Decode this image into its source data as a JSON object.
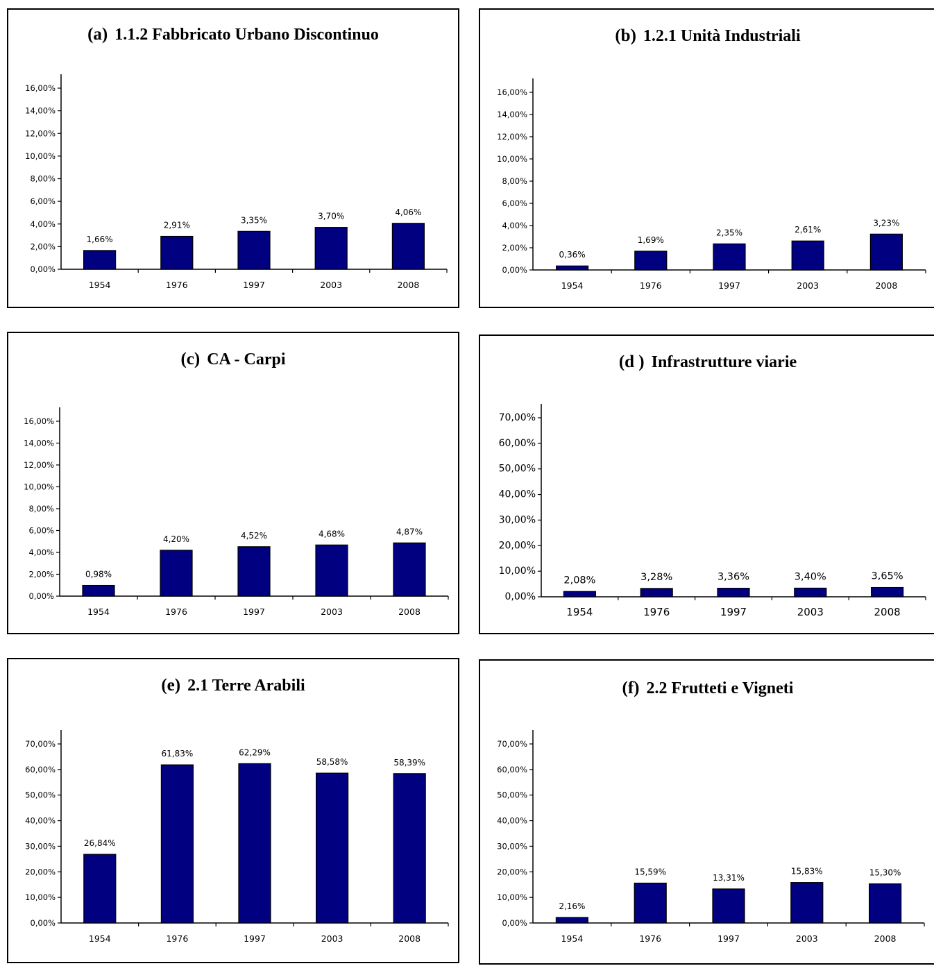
{
  "chart_data": [
    {
      "type": "bar",
      "panel_label": "(a)",
      "title": "1.1.2 Fabbricato Urbano Discontinuo",
      "categories": [
        "1954",
        "1976",
        "1997",
        "2003",
        "2008"
      ],
      "values": [
        1.66,
        2.91,
        3.35,
        3.7,
        4.06
      ],
      "value_labels": [
        "1,66%",
        "2,91%",
        "3,35%",
        "3,70%",
        "4,06%"
      ],
      "ylim": [
        0,
        16
      ],
      "yticks": [
        "0,00%",
        "2,00%",
        "4,00%",
        "6,00%",
        "8,00%",
        "10,00%",
        "12,00%",
        "14,00%",
        "16,00%"
      ],
      "bar_color": "#000080",
      "grid": false
    },
    {
      "type": "bar",
      "panel_label": "(b)",
      "title": "1.2.1 Unità Industriali",
      "categories": [
        "1954",
        "1976",
        "1997",
        "2003",
        "2008"
      ],
      "values": [
        0.36,
        1.69,
        2.35,
        2.61,
        3.23
      ],
      "value_labels": [
        "0,36%",
        "1,69%",
        "2,35%",
        "2,61%",
        "3,23%"
      ],
      "ylim": [
        0,
        16
      ],
      "yticks": [
        "0,00%",
        "2,00%",
        "4,00%",
        "6,00%",
        "8,00%",
        "10,00%",
        "12,00%",
        "14,00%",
        "16,00%"
      ],
      "bar_color": "#000080",
      "grid": false
    },
    {
      "type": "bar",
      "panel_label": "(c)",
      "title": "CA - Carpi",
      "categories": [
        "1954",
        "1976",
        "1997",
        "2003",
        "2008"
      ],
      "values": [
        0.98,
        4.2,
        4.52,
        4.68,
        4.87
      ],
      "value_labels": [
        "0,98%",
        "4,20%",
        "4,52%",
        "4,68%",
        "4,87%"
      ],
      "ylim": [
        0,
        16
      ],
      "yticks": [
        "0,00%",
        "2,00%",
        "4,00%",
        "6,00%",
        "8,00%",
        "10,00%",
        "12,00%",
        "14,00%",
        "16,00%"
      ],
      "bar_color": "#000080",
      "grid": false
    },
    {
      "type": "bar",
      "panel_label": "(d )",
      "title": "Infrastrutture viarie",
      "categories": [
        "1954",
        "1976",
        "1997",
        "2003",
        "2008"
      ],
      "values": [
        2.08,
        3.28,
        3.36,
        3.4,
        3.65
      ],
      "value_labels": [
        "2,08%",
        "3,28%",
        "3,36%",
        "3,40%",
        "3,65%"
      ],
      "ylim": [
        0,
        70
      ],
      "yticks": [
        "0,00%",
        "10,00%",
        "20,00%",
        "30,00%",
        "40,00%",
        "50,00%",
        "60,00%",
        "70,00%"
      ],
      "bar_color": "#000080",
      "grid": false
    },
    {
      "type": "bar",
      "panel_label": "(e)",
      "title": "2.1 Terre Arabili",
      "categories": [
        "1954",
        "1976",
        "1997",
        "2003",
        "2008"
      ],
      "values": [
        26.84,
        61.83,
        62.29,
        58.58,
        58.39
      ],
      "value_labels": [
        "26,84%",
        "61,83%",
        "62,29%",
        "58,58%",
        "58,39%"
      ],
      "ylim": [
        0,
        70
      ],
      "yticks": [
        "0,00%",
        "10,00%",
        "20,00%",
        "30,00%",
        "40,00%",
        "50,00%",
        "60,00%",
        "70,00%"
      ],
      "bar_color": "#000080",
      "grid": false
    },
    {
      "type": "bar",
      "panel_label": "(f)",
      "title": "2.2 Frutteti e Vigneti",
      "categories": [
        "1954",
        "1976",
        "1997",
        "2003",
        "2008"
      ],
      "values": [
        2.16,
        15.59,
        13.31,
        15.83,
        15.3
      ],
      "value_labels": [
        "2,16%",
        "15,59%",
        "13,31%",
        "15,83%",
        "15,30%"
      ],
      "ylim": [
        0,
        70
      ],
      "yticks": [
        "0,00%",
        "10,00%",
        "20,00%",
        "30,00%",
        "40,00%",
        "50,00%",
        "60,00%",
        "70,00%"
      ],
      "bar_color": "#000080",
      "grid": false
    }
  ]
}
